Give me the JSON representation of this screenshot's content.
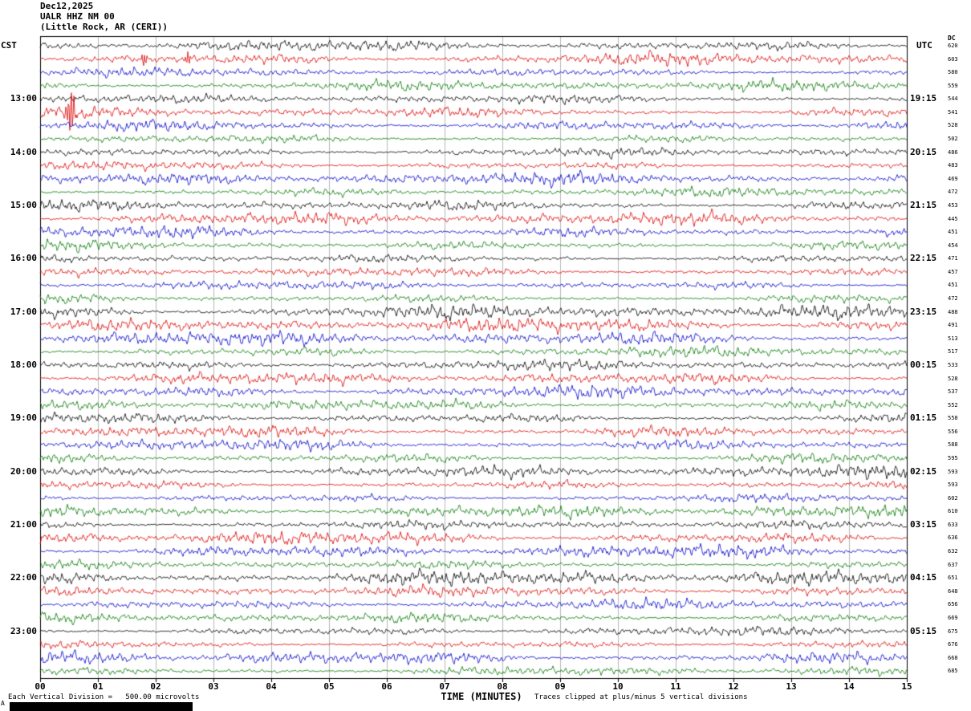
{
  "header": {
    "date": "Dec12,2025",
    "station": "UALR HHZ NM 00",
    "location": "(Little Rock, AR (CERI))"
  },
  "axes": {
    "left_label": "CST",
    "right_label": "UTC",
    "dc_label": "DC",
    "x_title": "TIME (MINUTES)"
  },
  "footer": {
    "scale_note": "Each Vertical Division =   500.00 microvolts",
    "clip_note": "Traces clipped at plus/minus 5 vertical divisions",
    "corner": "A"
  },
  "chart_data": {
    "type": "line",
    "title": "UALR HHZ NM 00 (Little Rock, AR (CERI)) helicorder, Dec12,2025",
    "xlabel": "TIME (MINUTES)",
    "x_range": [
      0,
      15
    ],
    "x_ticks": [
      "00",
      "01",
      "02",
      "03",
      "04",
      "05",
      "06",
      "07",
      "08",
      "09",
      "10",
      "11",
      "12",
      "13",
      "14",
      "15"
    ],
    "rows": 48,
    "minutes_per_row": 15,
    "row_color_cycle": [
      "#000000",
      "#dd0000",
      "#0000cc",
      "#007700"
    ],
    "left_time_labels": [
      {
        "row": 4,
        "label": "13:00"
      },
      {
        "row": 8,
        "label": "14:00"
      },
      {
        "row": 12,
        "label": "15:00"
      },
      {
        "row": 16,
        "label": "16:00"
      },
      {
        "row": 20,
        "label": "17:00"
      },
      {
        "row": 24,
        "label": "18:00"
      },
      {
        "row": 28,
        "label": "19:00"
      },
      {
        "row": 32,
        "label": "20:00"
      },
      {
        "row": 36,
        "label": "21:00"
      },
      {
        "row": 40,
        "label": "22:00"
      },
      {
        "row": 44,
        "label": "23:00"
      }
    ],
    "right_time_labels": [
      {
        "row": 4,
        "label": "19:15"
      },
      {
        "row": 8,
        "label": "20:15"
      },
      {
        "row": 12,
        "label": "21:15"
      },
      {
        "row": 16,
        "label": "22:15"
      },
      {
        "row": 20,
        "label": "23:15"
      },
      {
        "row": 24,
        "label": "00:15"
      },
      {
        "row": 28,
        "label": "01:15"
      },
      {
        "row": 32,
        "label": "02:15"
      },
      {
        "row": 36,
        "label": "03:15"
      },
      {
        "row": 40,
        "label": "04:15"
      },
      {
        "row": 44,
        "label": "05:15"
      }
    ],
    "dc_offsets": [
      620,
      603,
      580,
      559,
      544,
      541,
      528,
      502,
      486,
      483,
      469,
      472,
      453,
      445,
      451,
      454,
      471,
      457,
      451,
      472,
      488,
      491,
      513,
      517,
      533,
      528,
      537,
      552,
      558,
      556,
      588,
      595,
      593,
      593,
      602,
      610,
      633,
      636,
      632,
      637,
      651,
      648,
      656,
      669,
      675,
      676,
      668,
      685
    ],
    "scale_note": "Each Vertical Division = 500.00 microvolts",
    "clip_note": "Traces clipped at plus/minus 5 vertical divisions",
    "waveform_note": "Continuous ambient seismic noise traces; exact sample values are not recoverable from the image and are regenerated with seeded procedural noise.",
    "events": [
      {
        "row": 5,
        "minute": 0.53,
        "amplitude": 26,
        "width": 3.5,
        "description": "large clipped red spike just after 13:15 CST"
      },
      {
        "row": 1,
        "minute": 1.8,
        "amplitude": 9,
        "width": 2.2,
        "description": "small glitch on red trace"
      },
      {
        "row": 1,
        "minute": 2.55,
        "amplitude": 9,
        "width": 2.2,
        "description": "small glitch on red trace"
      }
    ]
  }
}
